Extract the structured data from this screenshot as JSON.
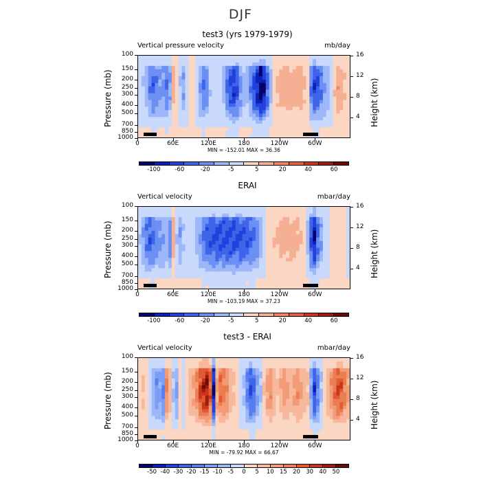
{
  "figure": {
    "title": "DJF"
  },
  "panels": [
    {
      "title": "test3 (yrs 1979-1979)",
      "left_label": "Vertical pressure velocity",
      "right_label": "mb/day",
      "stats": "MIN = -152.01   MAX =  36.36",
      "colorbar_labels": [
        "-100",
        "-60",
        "-20",
        "-5",
        "5",
        "20",
        "40",
        "60"
      ],
      "colorbar_colors": [
        "#05046b",
        "#0d1fb5",
        "#2241dc",
        "#3e65e9",
        "#6c8ff3",
        "#9db7f8",
        "#c8d9fb",
        "#fbd6c2",
        "#f5b094",
        "#ee8661",
        "#e45e3a",
        "#c9361b",
        "#9e1b10",
        "#6b0a07"
      ],
      "profile": [
        -10,
        -20,
        -35,
        -55,
        -70,
        -60,
        -45,
        -50,
        -60,
        -40,
        30,
        10,
        -20,
        -40,
        -15,
        15,
        5,
        -10,
        -40,
        -60,
        -50,
        -20,
        -5,
        -5,
        -10,
        -30,
        -60,
        -85,
        -95,
        -80,
        -50,
        -25,
        -30,
        -55,
        -85,
        -110,
        -140,
        -120,
        -70,
        -25,
        15,
        25,
        30,
        32,
        30,
        28,
        30,
        34,
        30,
        22,
        18,
        -60,
        -90,
        -80,
        -60,
        -40,
        -30,
        -10,
        20,
        35,
        30,
        20,
        10
      ]
    },
    {
      "title": "ERAI",
      "left_label": "Vertical velocity",
      "right_label": "mbar/day",
      "stats": "MIN = -103.19   MAX =  37.23",
      "colorbar_labels": [
        "-100",
        "-60",
        "-20",
        "-5",
        "5",
        "20",
        "40",
        "60"
      ],
      "colorbar_colors": [
        "#05046b",
        "#0d1fb5",
        "#2241dc",
        "#3e65e9",
        "#6c8ff3",
        "#9db7f8",
        "#c8d9fb",
        "#fbd6c2",
        "#f5b094",
        "#ee8661",
        "#e45e3a",
        "#c9361b",
        "#9e1b10",
        "#6b0a07"
      ],
      "profile": [
        -15,
        -30,
        -45,
        -55,
        -50,
        -40,
        -35,
        -30,
        -25,
        -40,
        25,
        -15,
        -30,
        -15,
        -10,
        -5,
        -8,
        -20,
        -30,
        -45,
        -55,
        -60,
        -62,
        -62,
        -63,
        -64,
        -64,
        -65,
        -65,
        -64,
        -62,
        -60,
        -57,
        -54,
        -50,
        -40,
        -25,
        -10,
        5,
        12,
        15,
        18,
        20,
        22,
        22,
        20,
        20,
        18,
        16,
        10,
        -20,
        -60,
        -90,
        -50,
        -30,
        -10,
        -5,
        5,
        10,
        8,
        5,
        0,
        -5
      ]
    },
    {
      "title": "test3 - ERAI",
      "left_label": "Vertical velocity",
      "right_label": "mbar/day",
      "stats": "MIN = -79.92   MAX =  66.67",
      "colorbar_labels": [
        "-50",
        "-40",
        "-30",
        "-20",
        "-15",
        "-10",
        "-5",
        "0",
        "5",
        "10",
        "15",
        "20",
        "30",
        "40",
        "50"
      ],
      "colorbar_colors": [
        "#05046b",
        "#0d1fb5",
        "#2241dc",
        "#3e65e9",
        "#577df0",
        "#7b9df5",
        "#9db7f8",
        "#c8d9fb",
        "#fbd6c2",
        "#f7b89c",
        "#f29b77",
        "#ec7c52",
        "#e25a33",
        "#c9361b",
        "#9e1b10",
        "#6b0a07"
      ],
      "profile": [
        5,
        10,
        8,
        -5,
        -15,
        -25,
        -20,
        -30,
        30,
        15,
        -10,
        -20,
        0,
        -5,
        5,
        15,
        20,
        30,
        45,
        55,
        60,
        40,
        -65,
        20,
        35,
        30,
        25,
        15,
        10,
        5,
        -5,
        -10,
        -30,
        -45,
        -35,
        -20,
        -10,
        10,
        20,
        25,
        15,
        10,
        18,
        22,
        20,
        15,
        20,
        25,
        20,
        15,
        10,
        -20,
        -50,
        -30,
        -10,
        5,
        15,
        25,
        35,
        45,
        40,
        30,
        20
      ]
    }
  ],
  "axes": {
    "x_ticks": [
      "0",
      "60E",
      "120E",
      "180",
      "120W",
      "60W"
    ],
    "y_left_ticks": [
      "100",
      "150",
      "200",
      "250",
      "300",
      "400",
      "500",
      "700",
      "850",
      "1000"
    ],
    "y_right_ticks": [
      "16",
      "12",
      "8",
      "4"
    ],
    "y_left_label": "Pressure (mb)",
    "y_right_label": "Height (km)"
  }
}
